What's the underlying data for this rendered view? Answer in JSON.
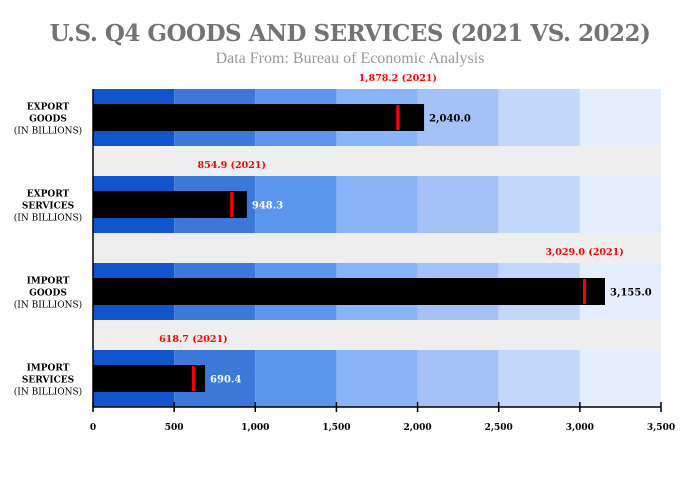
{
  "chart_data": {
    "type": "bar",
    "subtype": "bullet",
    "title": "U.S. Q4 GOODS AND SERVICES (2021 VS. 2022)",
    "subtitle": "Data From: Bureau of Economic Analysis",
    "xlim": [
      0,
      3500
    ],
    "xticks": [
      0,
      500,
      1000,
      1500,
      2000,
      2500,
      3000,
      3500
    ],
    "xtick_labels": [
      "0",
      "500",
      "1,000",
      "1,500",
      "2,000",
      "2,500",
      "3,000",
      "3,500"
    ],
    "range_bands": [
      500,
      1000,
      1500,
      2000,
      2500,
      3000,
      3500
    ],
    "band_colors": [
      "#1155cc",
      "#3c78d8",
      "#5b95ec",
      "#8ab4f8",
      "#a4c2f8",
      "#c2d8fb",
      "#e4eefd"
    ],
    "gap_color": "#eeeeee",
    "bar_color": "#000000",
    "marker_color": "#ff0000",
    "categories": [
      {
        "line1": "EXPORT",
        "line2": "GOODS",
        "line3": "(IN BILLIONS)"
      },
      {
        "line1": "EXPORT",
        "line2": "SERVICES",
        "line3": "(IN BILLIONS)"
      },
      {
        "line1": "IMPORT",
        "line2": "GOODS",
        "line3": "(IN BILLIONS)"
      },
      {
        "line1": "IMPORT",
        "line2": "SERVICES",
        "line3": "(IN BILLIONS)"
      }
    ],
    "values_2022": [
      2040.0,
      948.3,
      3155.0,
      690.4
    ],
    "value_labels": [
      "2,040.0",
      "948.3",
      "3,155.0",
      "690.4"
    ],
    "value_label_colors": [
      "#000000",
      "#ffffff",
      "#000000",
      "#ffffff"
    ],
    "values_2021": [
      1878.2,
      854.9,
      3029.0,
      618.7
    ],
    "marker_labels": [
      "1,878.2 (2021)",
      "854.9 (2021)",
      "3,029.0 (2021)",
      "618.7 (2021)"
    ]
  }
}
